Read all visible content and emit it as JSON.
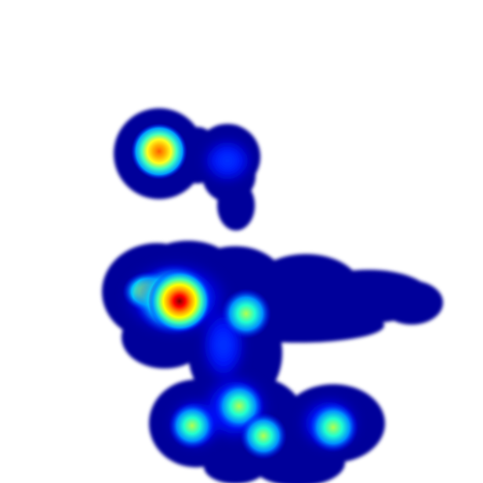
{
  "image": {
    "kind": "heatmap-overlay",
    "background": "#ffffff",
    "colormap": "jet",
    "colormap_stops": [
      "#00008f",
      "#0000ff",
      "#00ffff",
      "#ffff00",
      "#ff0000",
      "#800000"
    ],
    "hotspots": [
      {
        "name": "upper-left-spot",
        "intensity": 0.85
      },
      {
        "name": "upper-right-blob",
        "intensity": 0.28
      },
      {
        "name": "upper-right-tail",
        "intensity": 0.14
      },
      {
        "name": "main-peak",
        "intensity": 1.0
      },
      {
        "name": "main-left-shoulder",
        "intensity": 0.6
      },
      {
        "name": "main-right-spot",
        "intensity": 0.62
      },
      {
        "name": "mid-column",
        "intensity": 0.38
      },
      {
        "name": "lower-left-spot",
        "intensity": 0.5
      },
      {
        "name": "lower-center-spot",
        "intensity": 0.6
      },
      {
        "name": "lower-center-low",
        "intensity": 0.52
      },
      {
        "name": "lower-right-spot",
        "intensity": 0.55
      },
      {
        "name": "right-streak",
        "intensity": 0.22
      }
    ]
  }
}
